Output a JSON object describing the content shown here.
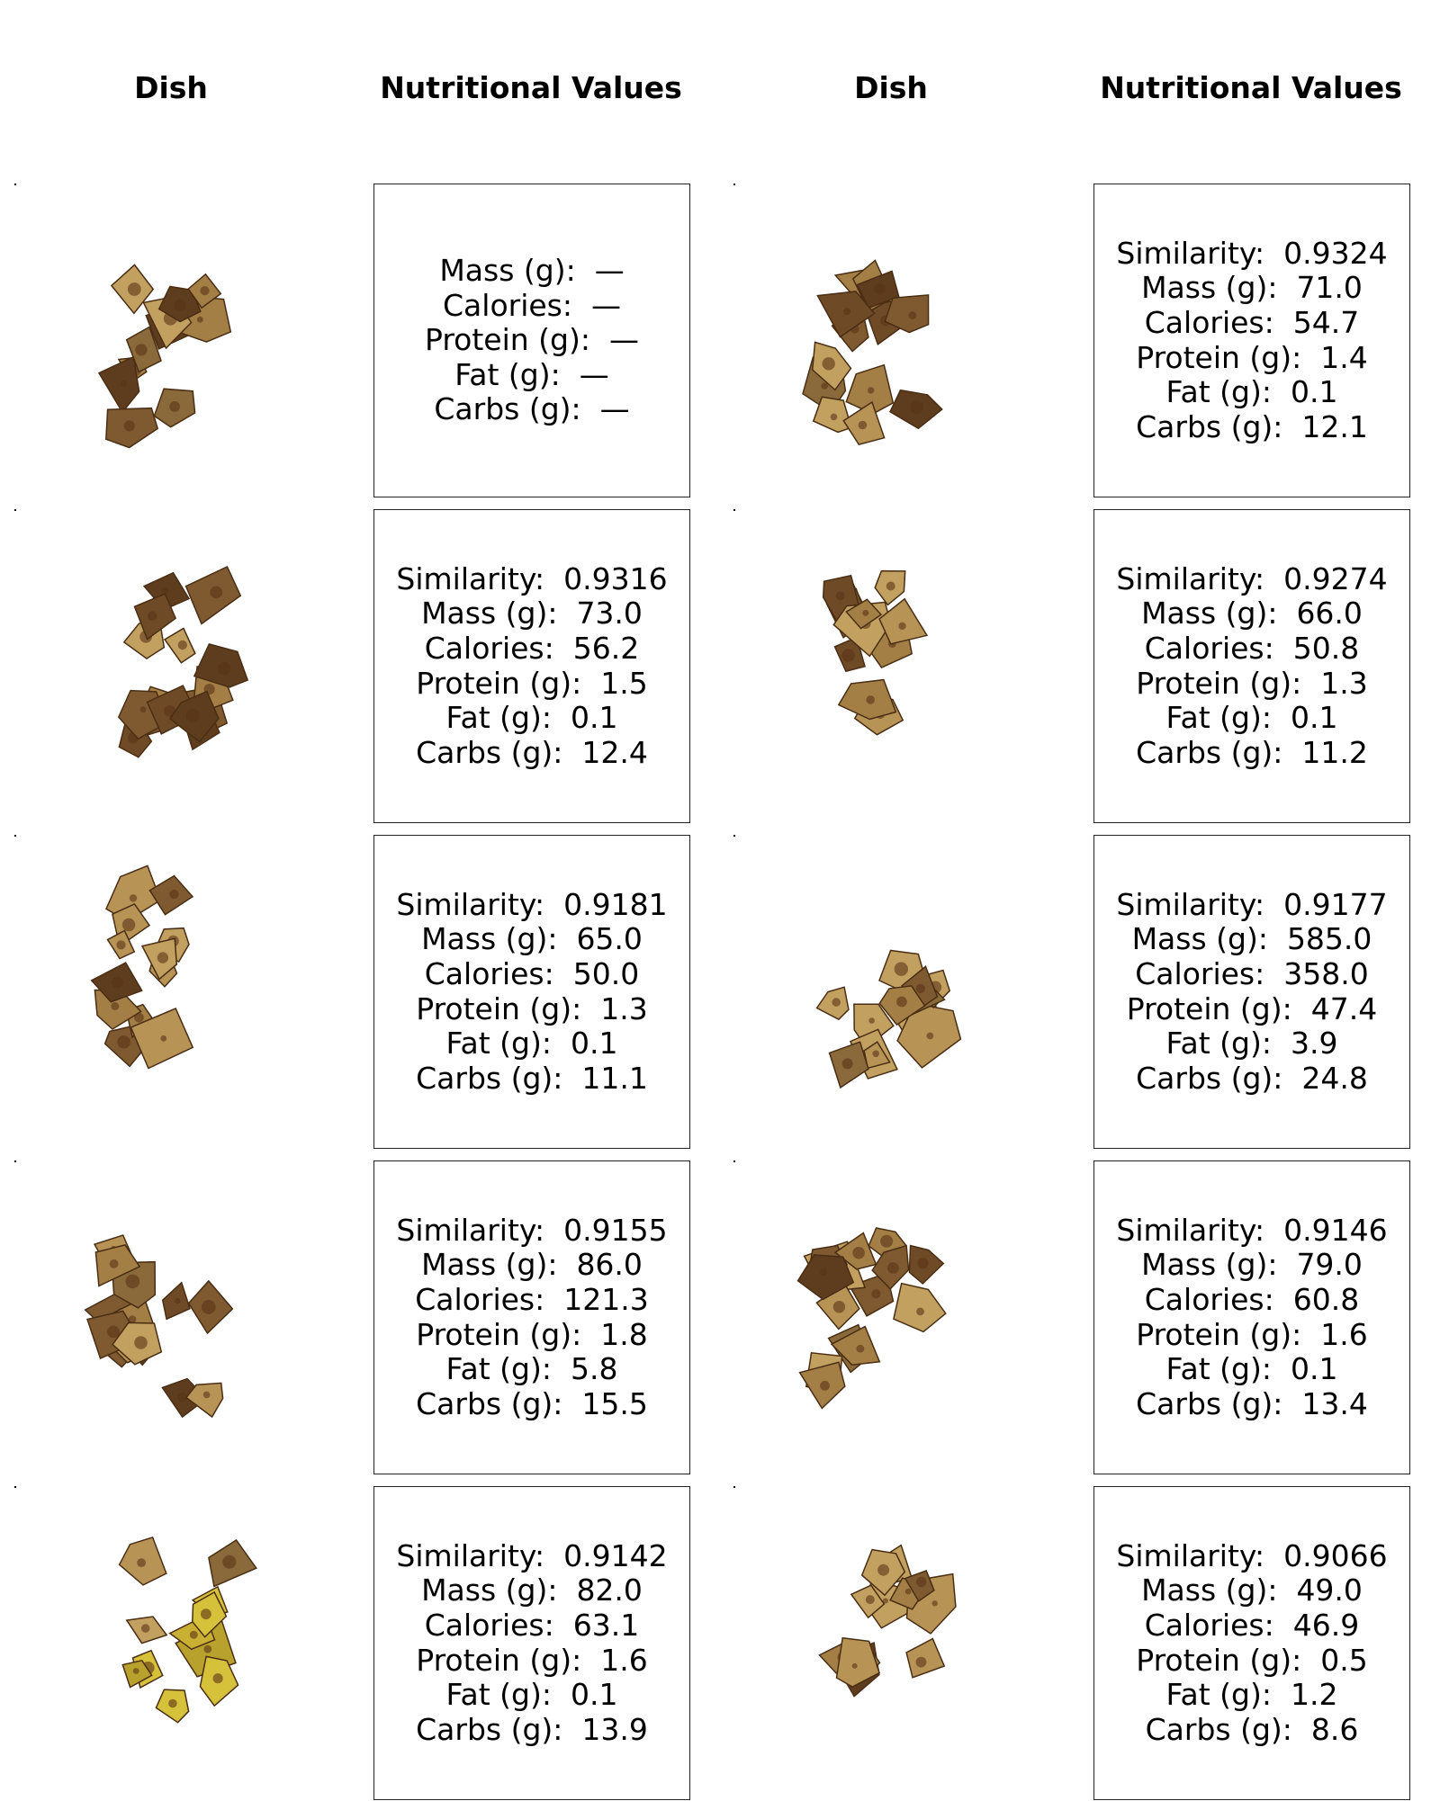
{
  "headers": {
    "dish_left": "Dish",
    "nutrition_left": "Nutritional Values",
    "dish_right": "Dish",
    "nutrition_right": "Nutritional Values"
  },
  "labels": {
    "similarity": "Similarity:",
    "mass": "Mass (g):",
    "calories": "Calories:",
    "protein": "Protein (g):",
    "fat": "Fat (g):",
    "carbs": "Carbs (g):"
  },
  "rows": [
    {
      "left": {
        "similarity": "",
        "mass": "—",
        "calories": "—",
        "protein": "—",
        "fat": "—",
        "carbs": "—"
      },
      "right": {
        "similarity": "0.9324",
        "mass": "71.0",
        "calories": "54.7",
        "protein": "1.4",
        "fat": "0.1",
        "carbs": "12.1"
      }
    },
    {
      "left": {
        "similarity": "0.9316",
        "mass": "73.0",
        "calories": "56.2",
        "protein": "1.5",
        "fat": "0.1",
        "carbs": "12.4"
      },
      "right": {
        "similarity": "0.9274",
        "mass": "66.0",
        "calories": "50.8",
        "protein": "1.3",
        "fat": "0.1",
        "carbs": "11.2"
      }
    },
    {
      "left": {
        "similarity": "0.9181",
        "mass": "65.0",
        "calories": "50.0",
        "protein": "1.3",
        "fat": "0.1",
        "carbs": "11.1"
      },
      "right": {
        "similarity": "0.9177",
        "mass": "585.0",
        "calories": "358.0",
        "protein": "47.4",
        "fat": "3.9",
        "carbs": "24.8"
      }
    },
    {
      "left": {
        "similarity": "0.9155",
        "mass": "86.0",
        "calories": "121.3",
        "protein": "1.8",
        "fat": "5.8",
        "carbs": "15.5"
      },
      "right": {
        "similarity": "0.9146",
        "mass": "79.0",
        "calories": "60.8",
        "protein": "1.6",
        "fat": "0.1",
        "carbs": "13.4"
      }
    },
    {
      "left": {
        "similarity": "0.9142",
        "mass": "82.0",
        "calories": "63.1",
        "protein": "1.6",
        "fat": "0.1",
        "carbs": "13.9"
      },
      "right": {
        "similarity": "0.9066",
        "mass": "49.0",
        "calories": "46.9",
        "protein": "0.5",
        "fat": "1.2",
        "carbs": "8.6"
      }
    }
  ]
}
